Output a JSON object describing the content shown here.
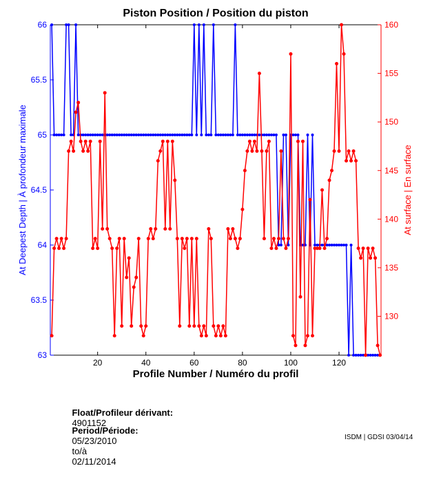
{
  "chart_data": {
    "type": "line",
    "title": "Piston Position / Position du piston",
    "xlabel": "Profile Number / Numéro du profil",
    "ylabel_left": "At Deepest Depth | À profondeur maximale",
    "ylabel_right": "At surface | En surface",
    "xlim": [
      0.4,
      137.4
    ],
    "ylim_left": [
      63,
      66
    ],
    "ylim_right": [
      126,
      160
    ],
    "xticks": [
      20,
      40,
      60,
      80,
      100,
      120
    ],
    "yticks_left": [
      "63",
      "63.5",
      "64",
      "64.5",
      "65",
      "65.5",
      "66"
    ],
    "yticks_left_values": [
      63,
      63.5,
      64,
      64.5,
      65,
      65.5,
      66
    ],
    "yticks_right": [
      130,
      135,
      140,
      145,
      150,
      155,
      160
    ],
    "grid": false,
    "series": [
      {
        "axis": "left",
        "color": "#0000ff",
        "values": [
          66,
          65,
          65,
          65,
          65,
          65,
          66,
          66,
          65,
          65,
          66,
          65,
          65,
          65,
          65,
          65,
          65,
          65,
          65,
          65,
          65,
          65,
          65,
          65,
          65,
          65,
          65,
          65,
          65,
          65,
          65,
          65,
          65,
          65,
          65,
          65,
          65,
          65,
          65,
          65,
          65,
          65,
          65,
          65,
          65,
          65,
          65,
          65,
          65,
          65,
          65,
          65,
          65,
          65,
          65,
          65,
          65,
          65,
          65,
          66,
          65,
          66,
          65,
          66,
          65,
          65,
          65,
          66,
          65,
          65,
          65,
          65,
          65,
          65,
          65,
          65,
          66,
          65,
          65,
          65,
          65,
          65,
          65,
          65,
          65,
          65,
          65,
          65,
          65,
          65,
          65,
          65,
          65,
          65,
          64,
          64,
          65,
          65,
          64,
          65,
          65,
          65,
          65,
          64,
          64,
          64,
          65,
          64,
          65,
          64,
          64,
          64,
          64,
          64,
          64,
          64,
          64,
          64,
          64,
          64,
          64,
          64,
          64,
          63,
          64,
          63,
          63,
          63,
          63,
          63,
          63,
          63,
          63,
          63,
          63,
          63,
          63
        ]
      },
      {
        "axis": "right",
        "color": "#ff0000",
        "values": [
          128,
          137,
          138,
          137,
          138,
          137,
          138,
          147,
          148,
          147,
          151,
          152,
          148,
          147,
          148,
          147,
          148,
          137,
          138,
          137,
          148,
          139,
          153,
          139,
          138,
          137,
          128,
          137,
          138,
          129,
          138,
          134,
          136,
          129,
          133,
          134,
          138,
          129,
          128,
          129,
          138,
          139,
          138,
          139,
          146,
          147,
          148,
          139,
          148,
          139,
          148,
          144,
          138,
          129,
          138,
          137,
          138,
          129,
          138,
          129,
          138,
          129,
          128,
          129,
          128,
          139,
          138,
          129,
          128,
          129,
          128,
          129,
          128,
          139,
          138,
          139,
          138,
          137,
          138,
          141,
          145,
          147,
          148,
          147,
          148,
          147,
          155,
          147,
          138,
          147,
          148,
          137,
          138,
          137,
          138,
          147,
          138,
          137,
          138,
          157,
          128,
          127,
          148,
          132,
          148,
          127,
          128,
          142,
          128,
          137,
          137,
          137,
          143,
          137,
          138,
          144,
          145,
          147,
          156,
          147,
          160,
          157,
          146,
          147,
          146,
          147,
          146,
          137,
          136,
          137,
          126,
          137,
          136,
          137,
          136,
          127,
          126
        ]
      }
    ]
  },
  "info": {
    "float_label": "Float/Profileur dérivant:",
    "float_value": "4901152",
    "period_label": "Period/Période:",
    "period_start": "05/23/2010",
    "period_sep": "to/à",
    "period_end": "02/11/2014",
    "credit": "ISDM | GDSI 03/04/14"
  }
}
